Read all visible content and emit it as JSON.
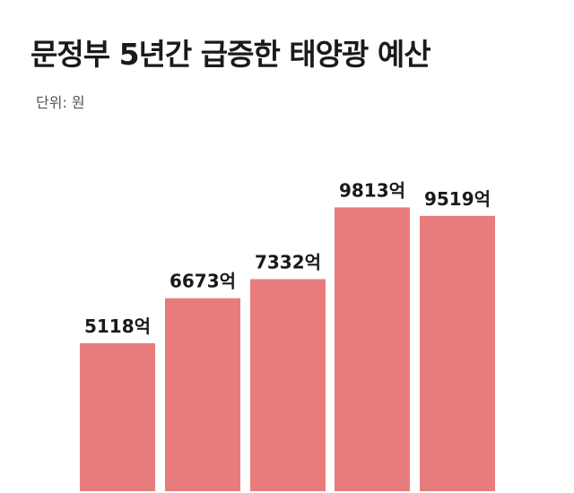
{
  "chart_data": {
    "type": "bar",
    "title": "문정부 5년간 급증한 태양광 예산",
    "subtitle": "단위: 원",
    "values": [
      5118,
      6673,
      7332,
      9813,
      9519
    ],
    "data_labels": [
      "5118억",
      "6673억",
      "7332억",
      "9813억",
      "9519억"
    ],
    "bar_color": "#e87c7c",
    "ylim": [
      0,
      10600
    ],
    "grid": false
  }
}
